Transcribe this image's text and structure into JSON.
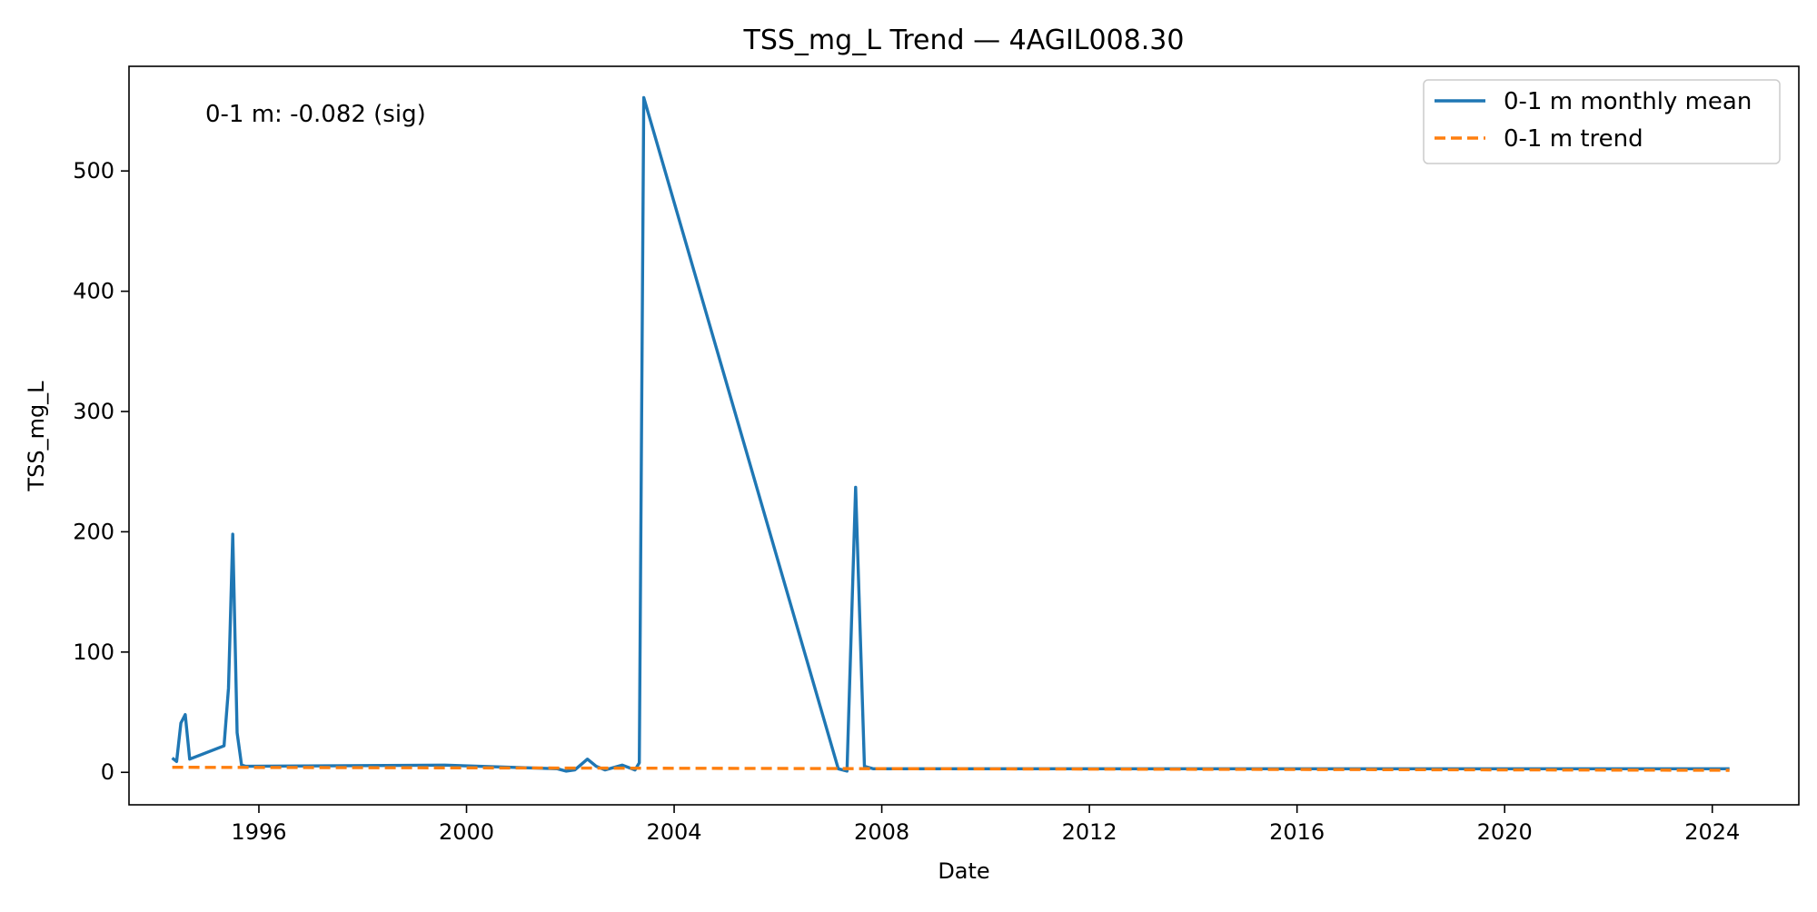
{
  "chart_data": {
    "type": "line",
    "title": "TSS_mg_L Trend — 4AGIL008.30",
    "xlabel": "Date",
    "ylabel": "TSS_mg_L",
    "x_axis_type": "date",
    "xlim": [
      "1993-07-01",
      "2025-09-01"
    ],
    "ylim": [
      -27,
      587
    ],
    "x_ticks": [
      "1996",
      "2000",
      "2004",
      "2008",
      "2012",
      "2016",
      "2020",
      "2024"
    ],
    "y_ticks": [
      0,
      100,
      200,
      300,
      400,
      500
    ],
    "grid": false,
    "legend": {
      "placement": "top-right",
      "entries": [
        "0-1 m monthly mean",
        "0-1 m trend"
      ]
    },
    "annotation": "0-1 m: -0.082 (sig)",
    "colors": {
      "monthly_mean": "#1f77b4",
      "trend": "#ff7f0e"
    },
    "series": [
      {
        "name": "0-1 m monthly mean",
        "style": "solid",
        "points": [
          [
            "1994-05-01",
            12
          ],
          [
            "1994-06-01",
            9
          ],
          [
            "1994-07-01",
            41
          ],
          [
            "1994-08-01",
            48
          ],
          [
            "1994-09-01",
            11
          ],
          [
            "1995-05-01",
            22
          ],
          [
            "1995-06-01",
            70
          ],
          [
            "1995-07-01",
            198
          ],
          [
            "1995-08-01",
            33
          ],
          [
            "1995-09-01",
            6
          ],
          [
            "1995-10-01",
            5
          ],
          [
            "1999-08-01",
            6
          ],
          [
            "2001-10-01",
            3
          ],
          [
            "2001-12-01",
            1
          ],
          [
            "2002-02-01",
            2
          ],
          [
            "2002-05-01",
            11
          ],
          [
            "2002-07-01",
            5
          ],
          [
            "2002-09-01",
            2
          ],
          [
            "2003-01-01",
            6
          ],
          [
            "2003-04-01",
            2
          ],
          [
            "2003-05-01",
            8
          ],
          [
            "2003-06-01",
            561
          ],
          [
            "2007-03-01",
            3
          ],
          [
            "2007-05-01",
            1
          ],
          [
            "2007-07-01",
            237
          ],
          [
            "2007-09-01",
            5
          ],
          [
            "2007-11-01",
            3
          ],
          [
            "2024-05-01",
            3
          ]
        ]
      },
      {
        "name": "0-1 m trend",
        "style": "dashed",
        "points": [
          [
            "1994-05-01",
            4.2
          ],
          [
            "2024-05-01",
            1.7
          ]
        ]
      }
    ]
  }
}
